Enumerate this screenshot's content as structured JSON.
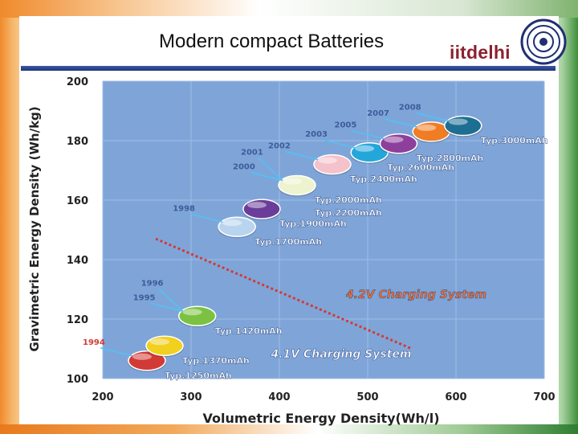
{
  "slide": {
    "title": "Modern compact Batteries",
    "brand": "iitdelhi"
  },
  "colors": {
    "plot_bg": "#7fa5d8",
    "grid": "#9fbde6",
    "axis_text": "#222222",
    "year_label": "#3d5c9b"
  },
  "chart_data": {
    "type": "scatter",
    "title": "",
    "xlabel": "Volumetric Energy Density(Wh/l)",
    "ylabel": "Gravimetric Energy Density (Wh/kg)",
    "xlim": [
      200,
      700
    ],
    "ylim": [
      100,
      200
    ],
    "xticks": [
      200,
      300,
      400,
      500,
      600,
      700
    ],
    "yticks": [
      100,
      120,
      140,
      160,
      180,
      200
    ],
    "grid": true,
    "points": [
      {
        "year": "1994",
        "label": "Typ.1250mAh",
        "x": 250,
        "y": 106,
        "color": "#d23a36"
      },
      {
        "year": "",
        "label": "Typ.1370mAh",
        "x": 270,
        "y": 111,
        "color": "#f1d01f"
      },
      {
        "year": "1995",
        "label": "Typ.1420mAh",
        "x": 307,
        "y": 121,
        "color": "#7cc242"
      },
      {
        "year": "1996",
        "label": "",
        "x": 307,
        "y": 121,
        "color": "#7cc242"
      },
      {
        "year": "1998",
        "label": "Typ.1700mAh",
        "x": 352,
        "y": 151,
        "color": "#b9d4ef"
      },
      {
        "year": "",
        "label": "Typ.1900mAh",
        "x": 380,
        "y": 157,
        "color": "#6a3d9a"
      },
      {
        "year": "2000",
        "label": "Typ.2000mAh",
        "x": 420,
        "y": 165,
        "color": "#eef3cf"
      },
      {
        "year": "2001",
        "label": "Typ.2200mAh",
        "x": 420,
        "y": 165,
        "color": "#eef3cf"
      },
      {
        "year": "2002",
        "label": "Typ.2400mAh",
        "x": 460,
        "y": 172,
        "color": "#f4c2ca"
      },
      {
        "year": "2003",
        "label": "Typ.2600mAh",
        "x": 502,
        "y": 176,
        "color": "#23a7da"
      },
      {
        "year": "2005",
        "label": "Typ.2800mAh",
        "x": 535,
        "y": 179,
        "color": "#8e3f9c"
      },
      {
        "year": "2007",
        "label": "",
        "x": 572,
        "y": 183,
        "color": "#f07d23"
      },
      {
        "year": "2008",
        "label": "Typ.3000mAh",
        "x": 608,
        "y": 185,
        "color": "#1d6e93"
      }
    ],
    "annotations": [
      {
        "text": "4.2V Charging System",
        "x": 555,
        "y": 127,
        "color": "#f3702d"
      },
      {
        "text": "4.1V Charging System",
        "x": 470,
        "y": 107,
        "color": "#ffffff"
      }
    ],
    "divider_line": {
      "from": [
        260,
        147
      ],
      "to": [
        550,
        110
      ]
    }
  }
}
